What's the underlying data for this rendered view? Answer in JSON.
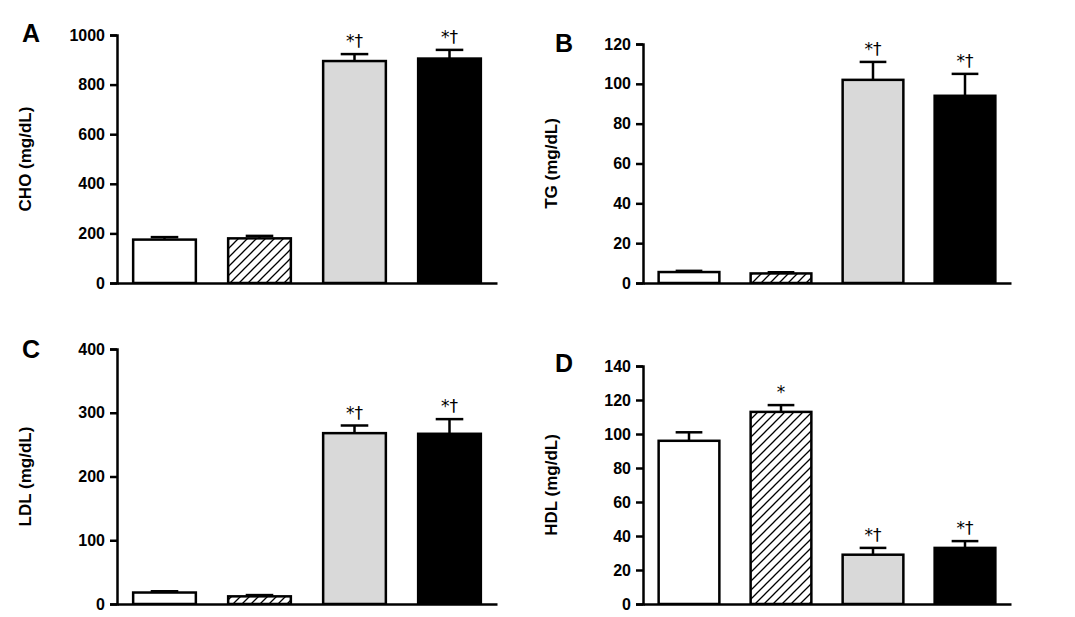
{
  "chart_data": [
    {
      "type": "bar",
      "title": "A",
      "y_label": "CHO (mg/dL)",
      "categories": [
        null,
        null,
        null,
        null
      ],
      "values": [
        175,
        180,
        895,
        905
      ],
      "errors": [
        10,
        10,
        28,
        35
      ],
      "annotations": [
        null,
        null,
        "*†",
        "*†"
      ],
      "colors": [
        "#ffffff",
        "#ffffff",
        "#d9d9d9",
        "#000000"
      ],
      "ylim": [
        0,
        1000
      ],
      "yticks": [
        0,
        200,
        400,
        600,
        800,
        1000
      ],
      "tick_labels": "y"
    },
    {
      "type": "bar",
      "title": "B",
      "y_label": "TG (mg/dL)",
      "categories": [
        null,
        null,
        null,
        null
      ],
      "values": [
        5.5,
        4.8,
        102,
        94
      ],
      "errors": [
        0.6,
        0.6,
        9,
        11
      ],
      "annotations": [
        null,
        null,
        "*†",
        "*†"
      ],
      "colors": [
        "#ffffff",
        "#ffffff",
        "#d9d9d9",
        "#000000"
      ],
      "ylim": [
        0,
        120
      ],
      "yticks": [
        0,
        20,
        40,
        60,
        80,
        100,
        120
      ],
      "tick_labels": "y"
    },
    {
      "type": "bar",
      "title": "C",
      "y_label": "LDL (mg/dL)",
      "categories": [
        null,
        null,
        null,
        null
      ],
      "values": [
        18,
        12,
        268,
        267
      ],
      "errors": [
        2,
        2,
        12,
        23
      ],
      "annotations": [
        null,
        null,
        "*†",
        "*†"
      ],
      "colors": [
        "#ffffff",
        "#ffffff",
        "#d9d9d9",
        "#000000"
      ],
      "ylim": [
        0,
        400
      ],
      "yticks": [
        0,
        100,
        200,
        300,
        400
      ],
      "tick_labels": "y"
    },
    {
      "type": "bar",
      "title": "D",
      "y_label": "HDL (mg/dL)",
      "categories": [
        null,
        null,
        null,
        null
      ],
      "values": [
        96,
        113,
        29,
        33
      ],
      "errors": [
        5,
        4,
        4,
        4
      ],
      "annotations": [
        null,
        "*",
        "*†",
        "*†"
      ],
      "colors": [
        "#ffffff",
        "#ffffff",
        "#d9d9d9",
        "#000000"
      ],
      "ylim": [
        0,
        140
      ],
      "yticks": [
        0,
        20,
        40,
        60,
        80,
        100,
        120,
        140
      ],
      "tick_labels": "y"
    }
  ]
}
